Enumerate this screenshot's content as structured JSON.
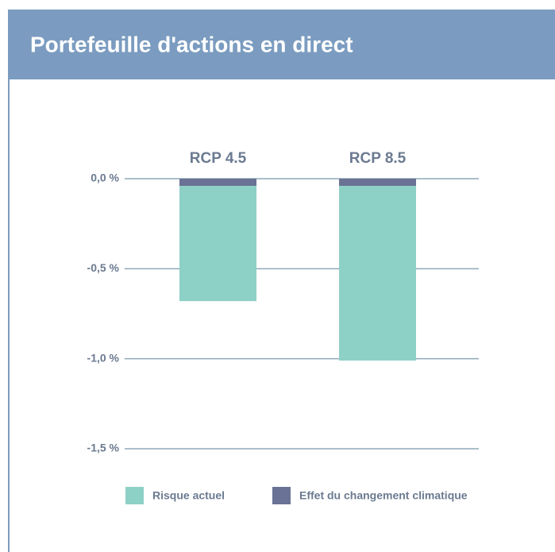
{
  "chart_data": {
    "type": "bar",
    "stacked": true,
    "title": "Portefeuille d'actions en direct",
    "categories": [
      "RCP 4.5",
      "RCP 8.5"
    ],
    "series": [
      {
        "name": "Risque actuel",
        "color": "#8dd0c6",
        "values": [
          -0.64,
          -0.97
        ]
      },
      {
        "name": "Effet du changement climatique",
        "color": "#6a7295",
        "values": [
          -0.04,
          -0.04
        ]
      }
    ],
    "ylim": [
      -1.5,
      0
    ],
    "yticks": [
      {
        "value": 0,
        "label": "0,0 %"
      },
      {
        "value": -0.5,
        "label": "-0,5 %"
      },
      {
        "value": -1.0,
        "label": "-1,0 %"
      },
      {
        "value": -1.5,
        "label": "-1,5 %"
      }
    ],
    "grid": true
  }
}
